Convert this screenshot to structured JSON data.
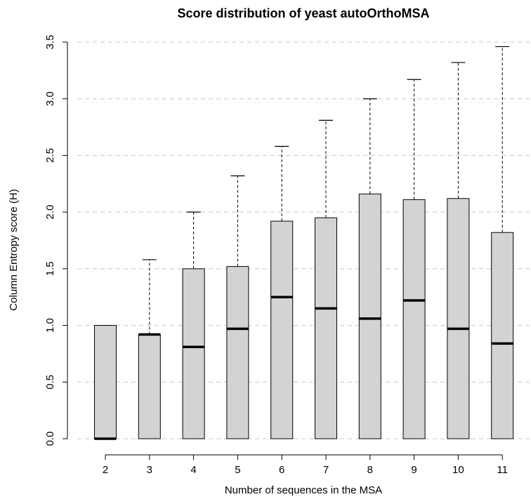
{
  "chart_data": {
    "type": "boxplot",
    "title": "Score distribution of yeast autoOrthoMSA",
    "xlabel": "Number of sequences in the MSA",
    "ylabel": "Column Entropy score (H)",
    "ylim": [
      -0.1,
      3.55
    ],
    "y_ticks": [
      "0.0",
      "0.5",
      "1.0",
      "1.5",
      "2.0",
      "2.5",
      "3.0",
      "3.5"
    ],
    "grid": "horizontal dashed",
    "box_fill": "#d3d3d3",
    "categories": [
      "2",
      "3",
      "4",
      "5",
      "6",
      "7",
      "8",
      "9",
      "10",
      "11"
    ],
    "boxes": [
      {
        "label": "2",
        "min": 0.0,
        "q1": 0.0,
        "median": 0.0,
        "q3": 1.0,
        "max": 1.0
      },
      {
        "label": "3",
        "min": 0.0,
        "q1": 0.0,
        "median": 0.92,
        "q3": 0.92,
        "max": 1.58
      },
      {
        "label": "4",
        "min": 0.0,
        "q1": 0.0,
        "median": 0.81,
        "q3": 1.5,
        "max": 2.0
      },
      {
        "label": "5",
        "min": 0.0,
        "q1": 0.0,
        "median": 0.97,
        "q3": 1.52,
        "max": 2.32
      },
      {
        "label": "6",
        "min": 0.0,
        "q1": 0.0,
        "median": 1.25,
        "q3": 1.92,
        "max": 2.58
      },
      {
        "label": "7",
        "min": 0.0,
        "q1": 0.0,
        "median": 1.15,
        "q3": 1.95,
        "max": 2.81
      },
      {
        "label": "8",
        "min": 0.0,
        "q1": 0.0,
        "median": 1.06,
        "q3": 2.16,
        "max": 3.0
      },
      {
        "label": "9",
        "min": 0.0,
        "q1": 0.0,
        "median": 1.22,
        "q3": 2.11,
        "max": 3.17
      },
      {
        "label": "10",
        "min": 0.0,
        "q1": 0.0,
        "median": 0.97,
        "q3": 2.12,
        "max": 3.32
      },
      {
        "label": "11",
        "min": 0.0,
        "q1": 0.0,
        "median": 0.84,
        "q3": 1.82,
        "max": 3.46
      }
    ]
  }
}
